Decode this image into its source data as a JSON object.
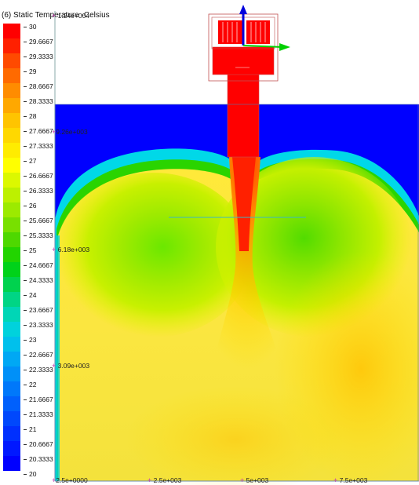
{
  "legend": {
    "title": "(6) Static Temperature -Celsius",
    "values": [
      "30",
      "29.6667",
      "29.3333",
      "29",
      "28.6667",
      "28.3333",
      "28",
      "27.6667",
      "27.3333",
      "27",
      "26.6667",
      "26.3333",
      "26",
      "25.6667",
      "25.3333",
      "25",
      "24.6667",
      "24.3333",
      "24",
      "23.6667",
      "23.3333",
      "23",
      "22.6667",
      "22.3333",
      "22",
      "21.6667",
      "21.3333",
      "21",
      "20.6667",
      "20.3333",
      "20"
    ],
    "colors": [
      "#ff0000",
      "#ff2000",
      "#ff4a00",
      "#ff6a00",
      "#ff8c00",
      "#ffa800",
      "#ffc400",
      "#ffd800",
      "#ffec00",
      "#ffff00",
      "#dcf800",
      "#bdf000",
      "#9cea00",
      "#78e000",
      "#4ed800",
      "#22d400",
      "#00d21a",
      "#00d24e",
      "#00d585",
      "#00d6b6",
      "#00d2dc",
      "#00c0ec",
      "#00a8f4",
      "#0090f8",
      "#0078fa",
      "#0060fc",
      "#0048fc",
      "#0030fe",
      "#0018ff",
      "#0000ff"
    ]
  },
  "axes": {
    "y_ticks": [
      "1.24e+004",
      "9.26e+003",
      "6.18e+003",
      "3.09e+003"
    ],
    "x_ticks": [
      "2.5e+003",
      "5e+003",
      "7.5e+003"
    ],
    "origin_label": "2.5e+0000"
  },
  "colors": {
    "cold_region": "#0000ff",
    "ambient": "#f2e83a",
    "hot_jet": "#ff0000",
    "marker": "#c23bb3"
  },
  "icons": {
    "axis_triad": "xyz-axis-triad-icon"
  }
}
